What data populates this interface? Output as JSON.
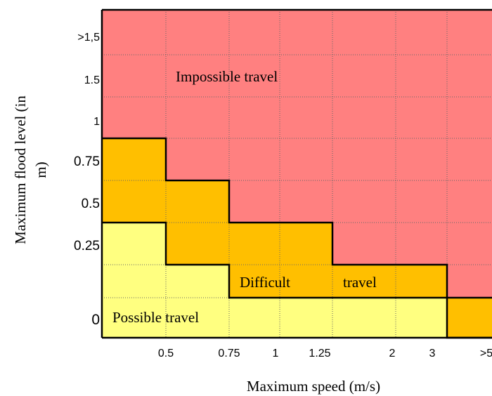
{
  "chart_data": {
    "type": "heatmap",
    "xlabel": "Maximum speed (m/s)",
    "ylabel": "Maximum flood level (in m)",
    "ylabel_lines": [
      "Maximum flood level (in",
      "m)"
    ],
    "x_tick_labels": [
      "0.5",
      "0.75",
      "1",
      "1.25",
      "2",
      "3",
      ">5"
    ],
    "y_tick_labels": [
      "0",
      "0.25",
      "0.5",
      "0.75",
      "1",
      "1.5",
      ">1,5"
    ],
    "zones": [
      {
        "name": "Possible travel",
        "label": "Possible travel",
        "color": "#FFFF80"
      },
      {
        "name": "Difficult travel",
        "label_parts": [
          "Difficult",
          "travel"
        ],
        "color": "#FFBF00"
      },
      {
        "name": "Impossible travel",
        "label": "Impossible travel",
        "color": "#FF8080"
      }
    ],
    "difficult_boundary_lower": [
      {
        "x_from": "0",
        "x_to": "0.5",
        "y": "0.25"
      },
      {
        "x_from": "0.5",
        "x_to": "0.75",
        "y": "0.125"
      },
      {
        "x_from": "0.75",
        "x_to": "3",
        "y": "0.0625"
      },
      {
        "x_from": "3",
        "x_to": ">5",
        "y": "0"
      }
    ],
    "impossible_boundary_lower": [
      {
        "x_from": "0",
        "x_to": "0.5",
        "y": "0.75"
      },
      {
        "x_from": "0.5",
        "x_to": "0.75",
        "y": "0.5"
      },
      {
        "x_from": "0.75",
        "x_to": "1.25",
        "y": "0.25"
      },
      {
        "x_from": "1.25",
        "x_to": "3",
        "y": "0.125"
      },
      {
        "x_from": "3",
        "x_to": ">5",
        "y": "0.0625"
      }
    ],
    "grid": true,
    "legend": "none"
  }
}
